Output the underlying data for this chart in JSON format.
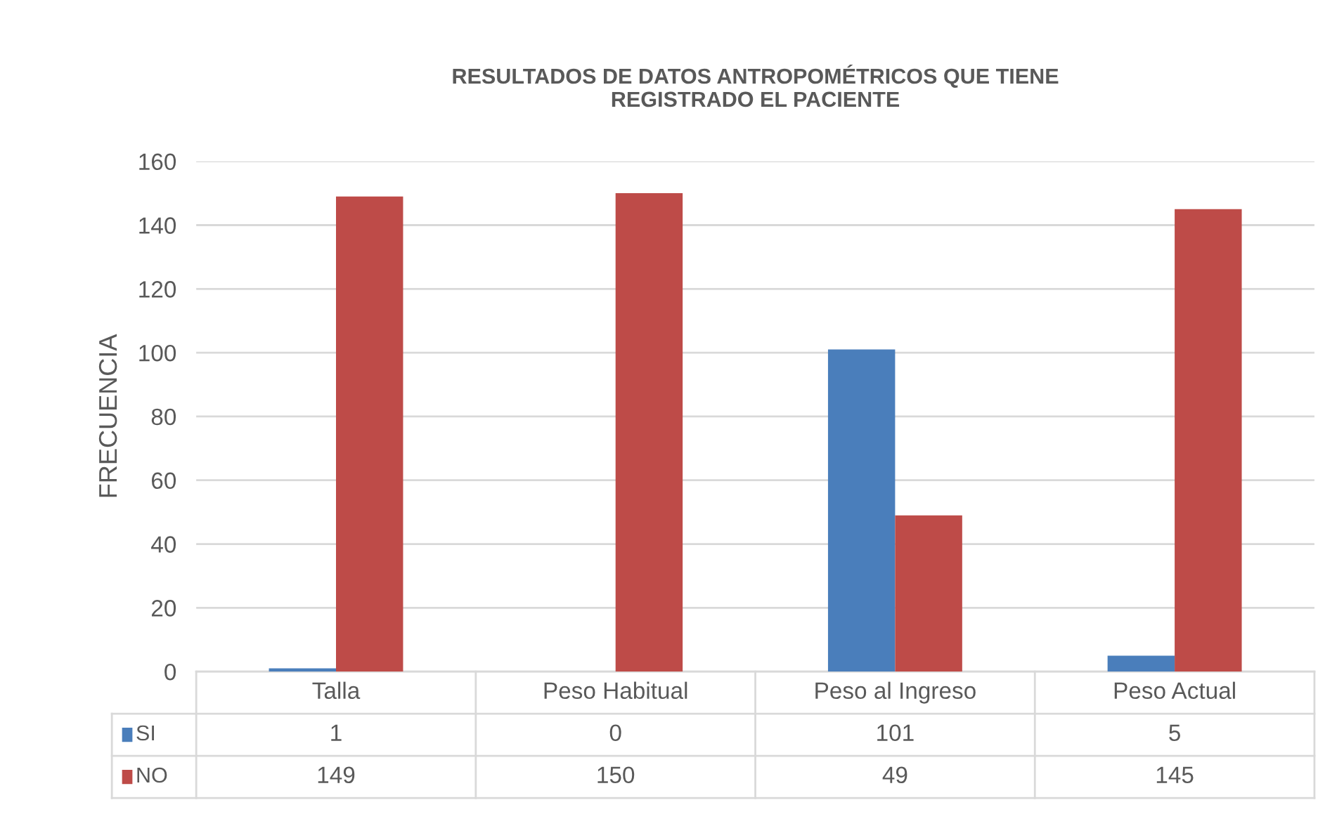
{
  "chart_data": {
    "type": "bar",
    "title": "RESULTADOS DE DATOS ANTROPOMÉTRICOS QUE TIENE\nREGISTRADO EL PACIENTE",
    "ylabel": "FRECUENCIA",
    "categories": [
      "Talla",
      "Peso Habitual",
      "Peso al Ingreso",
      "Peso Actual"
    ],
    "series": [
      {
        "name": "SI",
        "color": "#4a7ebb",
        "values": [
          1,
          0,
          101,
          5
        ]
      },
      {
        "name": "NO",
        "color": "#be4b48",
        "values": [
          149,
          150,
          49,
          145
        ]
      }
    ],
    "ylim": [
      0,
      160
    ],
    "yticks": [
      0,
      20,
      40,
      60,
      80,
      100,
      120,
      140,
      160
    ],
    "grid": "y",
    "legend": "bottom",
    "data_labels": true
  }
}
